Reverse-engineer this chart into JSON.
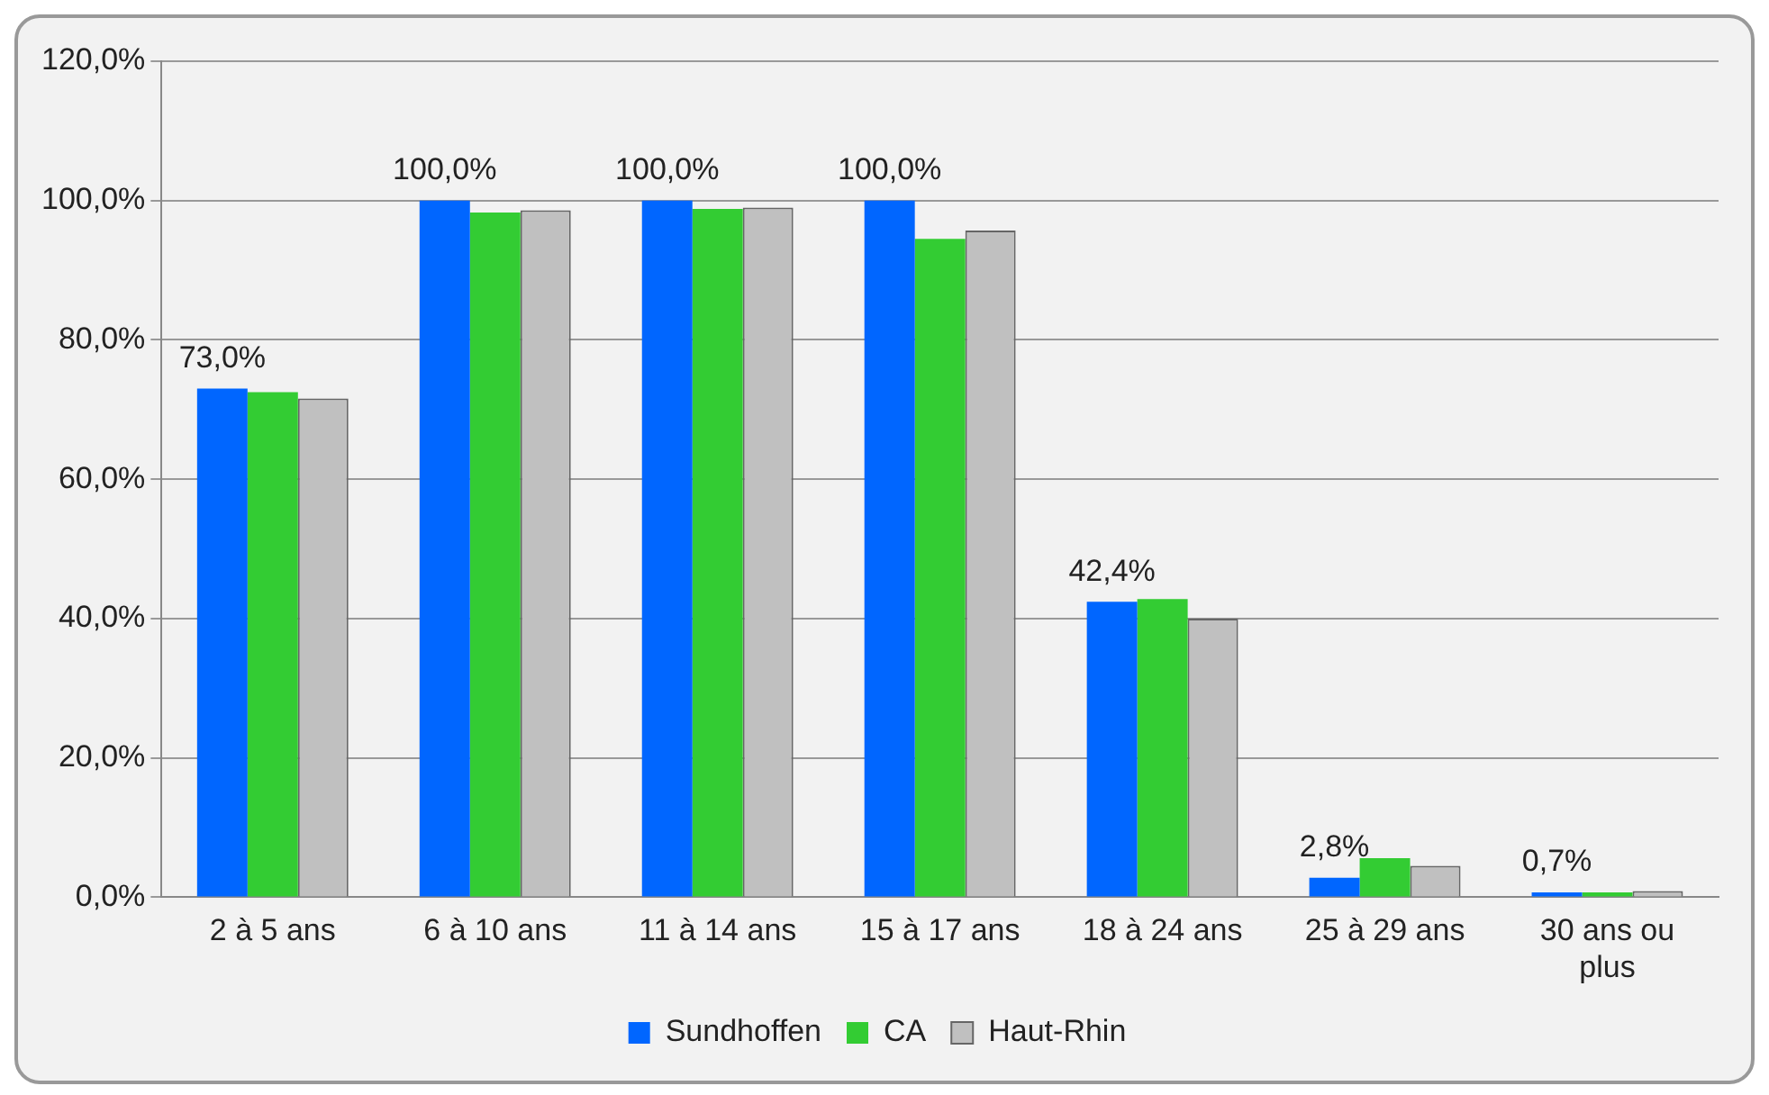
{
  "chart_data": {
    "type": "bar",
    "categories": [
      "2 à 5 ans",
      "6 à 10 ans",
      "11 à 14 ans",
      "15 à 17 ans",
      "18 à 24 ans",
      "25 à 29 ans",
      "30 ans ou plus"
    ],
    "series": [
      {
        "name": "Sundhoffen",
        "color": "#0066ff",
        "values": [
          73.0,
          100.0,
          100.0,
          100.0,
          42.4,
          2.8,
          0.7
        ],
        "value_labels": [
          "73,0%",
          "100,0%",
          "100,0%",
          "100,0%",
          "42,4%",
          "2,8%",
          "0,7%"
        ]
      },
      {
        "name": "CA",
        "color": "#33cc33",
        "values": [
          72.5,
          98.3,
          98.8,
          94.5,
          42.8,
          5.6,
          0.7
        ]
      },
      {
        "name": "Haut-Rhin",
        "color": "#c0c0c0",
        "values": [
          71.6,
          98.6,
          99.0,
          95.7,
          40.0,
          4.5,
          0.9
        ]
      }
    ],
    "ylim": [
      0,
      120
    ],
    "yticks": [
      {
        "value": 0,
        "label": "0,0%"
      },
      {
        "value": 20,
        "label": "20,0%"
      },
      {
        "value": 40,
        "label": "40,0%"
      },
      {
        "value": 60,
        "label": "60,0%"
      },
      {
        "value": 80,
        "label": "80,0%"
      },
      {
        "value": 100,
        "label": "100,0%"
      },
      {
        "value": 120,
        "label": "120,0%"
      }
    ],
    "grid": "y",
    "legend": "bottom"
  }
}
